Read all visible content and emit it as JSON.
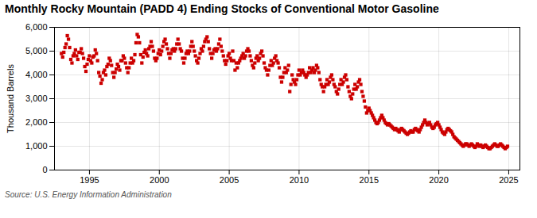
{
  "chart_data": {
    "type": "scatter",
    "title": "Monthly Rocky Mountain (PADD 4) Ending Stocks of Conventional Motor Gasoline",
    "ylabel": "Thousand Barrels",
    "source": "Source: U.S. Energy Information Administration",
    "color": "#cc0000",
    "marker": "square",
    "grid": true,
    "xlim": [
      1992.5,
      2025.8
    ],
    "xticks": [
      1995,
      2000,
      2005,
      2010,
      2015,
      2020,
      2025
    ],
    "ylim": [
      0,
      6000
    ],
    "yticks": [
      0,
      {
        "value": 1000,
        "label": "1,000"
      },
      {
        "value": 2000,
        "label": "2,000"
      },
      {
        "value": 3000,
        "label": "3,000"
      },
      {
        "value": 4000,
        "label": "4,000"
      },
      {
        "value": 5000,
        "label": "5,000"
      },
      {
        "value": 6000,
        "label": "6,000"
      }
    ],
    "x": [
      1993.0,
      1993.083,
      1993.167,
      1993.25,
      1993.333,
      1993.417,
      1993.5,
      1993.583,
      1993.667,
      1993.75,
      1993.833,
      1993.917,
      1994.0,
      1994.083,
      1994.167,
      1994.25,
      1994.333,
      1994.417,
      1994.5,
      1994.583,
      1994.667,
      1994.75,
      1994.833,
      1994.917,
      1995.0,
      1995.083,
      1995.167,
      1995.25,
      1995.333,
      1995.417,
      1995.5,
      1995.583,
      1995.667,
      1995.75,
      1995.833,
      1995.917,
      1996.0,
      1996.083,
      1996.167,
      1996.25,
      1996.333,
      1996.417,
      1996.5,
      1996.583,
      1996.667,
      1996.75,
      1996.833,
      1996.917,
      1997.0,
      1997.083,
      1997.167,
      1997.25,
      1997.333,
      1997.417,
      1997.5,
      1997.583,
      1997.667,
      1997.75,
      1997.833,
      1997.917,
      1998.0,
      1998.083,
      1998.167,
      1998.25,
      1998.333,
      1998.417,
      1998.5,
      1998.583,
      1998.667,
      1998.75,
      1998.833,
      1998.917,
      1999.0,
      1999.083,
      1999.167,
      1999.25,
      1999.333,
      1999.417,
      1999.5,
      1999.583,
      1999.667,
      1999.75,
      1999.833,
      1999.917,
      2000.0,
      2000.083,
      2000.167,
      2000.25,
      2000.333,
      2000.417,
      2000.5,
      2000.583,
      2000.667,
      2000.75,
      2000.833,
      2000.917,
      2001.0,
      2001.083,
      2001.167,
      2001.25,
      2001.333,
      2001.417,
      2001.5,
      2001.583,
      2001.667,
      2001.75,
      2001.833,
      2001.917,
      2002.0,
      2002.083,
      2002.167,
      2002.25,
      2002.333,
      2002.417,
      2002.5,
      2002.583,
      2002.667,
      2002.75,
      2002.833,
      2002.917,
      2003.0,
      2003.083,
      2003.167,
      2003.25,
      2003.333,
      2003.417,
      2003.5,
      2003.583,
      2003.667,
      2003.75,
      2003.833,
      2003.917,
      2004.0,
      2004.083,
      2004.167,
      2004.25,
      2004.333,
      2004.417,
      2004.5,
      2004.583,
      2004.667,
      2004.75,
      2004.833,
      2004.917,
      2005.0,
      2005.083,
      2005.167,
      2005.25,
      2005.333,
      2005.417,
      2005.5,
      2005.583,
      2005.667,
      2005.75,
      2005.833,
      2005.917,
      2006.0,
      2006.083,
      2006.167,
      2006.25,
      2006.333,
      2006.417,
      2006.5,
      2006.583,
      2006.667,
      2006.75,
      2006.833,
      2006.917,
      2007.0,
      2007.083,
      2007.167,
      2007.25,
      2007.333,
      2007.417,
      2007.5,
      2007.583,
      2007.667,
      2007.75,
      2007.833,
      2007.917,
      2008.0,
      2008.083,
      2008.167,
      2008.25,
      2008.333,
      2008.417,
      2008.5,
      2008.583,
      2008.667,
      2008.75,
      2008.833,
      2008.917,
      2009.0,
      2009.083,
      2009.167,
      2009.25,
      2009.333,
      2009.417,
      2009.5,
      2009.583,
      2009.667,
      2009.75,
      2009.833,
      2009.917,
      2010.0,
      2010.083,
      2010.167,
      2010.25,
      2010.333,
      2010.417,
      2010.5,
      2010.583,
      2010.667,
      2010.75,
      2010.833,
      2010.917,
      2011.0,
      2011.083,
      2011.167,
      2011.25,
      2011.333,
      2011.417,
      2011.5,
      2011.583,
      2011.667,
      2011.75,
      2011.833,
      2011.917,
      2012.0,
      2012.083,
      2012.167,
      2012.25,
      2012.333,
      2012.417,
      2012.5,
      2012.583,
      2012.667,
      2012.75,
      2012.833,
      2012.917,
      2013.0,
      2013.083,
      2013.167,
      2013.25,
      2013.333,
      2013.417,
      2013.5,
      2013.583,
      2013.667,
      2013.75,
      2013.833,
      2013.917,
      2014.0,
      2014.083,
      2014.167,
      2014.25,
      2014.333,
      2014.417,
      2014.5,
      2014.583,
      2014.667,
      2014.75,
      2014.833,
      2014.917,
      2015.0,
      2015.083,
      2015.167,
      2015.25,
      2015.333,
      2015.417,
      2015.5,
      2015.583,
      2015.667,
      2015.75,
      2015.833,
      2015.917,
      2016.0,
      2016.083,
      2016.167,
      2016.25,
      2016.333,
      2016.417,
      2016.5,
      2016.583,
      2016.667,
      2016.75,
      2016.833,
      2016.917,
      2017.0,
      2017.083,
      2017.167,
      2017.25,
      2017.333,
      2017.417,
      2017.5,
      2017.583,
      2017.667,
      2017.75,
      2017.833,
      2017.917,
      2018.0,
      2018.083,
      2018.167,
      2018.25,
      2018.333,
      2018.417,
      2018.5,
      2018.583,
      2018.667,
      2018.75,
      2018.833,
      2018.917,
      2019.0,
      2019.083,
      2019.167,
      2019.25,
      2019.333,
      2019.417,
      2019.5,
      2019.583,
      2019.667,
      2019.75,
      2019.833,
      2019.917,
      2020.0,
      2020.083,
      2020.167,
      2020.25,
      2020.333,
      2020.417,
      2020.5,
      2020.583,
      2020.667,
      2020.75,
      2020.833,
      2020.917,
      2021.0,
      2021.083,
      2021.167,
      2021.25,
      2021.333,
      2021.417,
      2021.5,
      2021.583,
      2021.667,
      2021.75,
      2021.833,
      2021.917,
      2022.0,
      2022.083,
      2022.167,
      2022.25,
      2022.333,
      2022.417,
      2022.5,
      2022.583,
      2022.667,
      2022.75,
      2022.833,
      2022.917,
      2023.0,
      2023.083,
      2023.167,
      2023.25,
      2023.333,
      2023.417,
      2023.5,
      2023.583,
      2023.667,
      2023.75,
      2023.833,
      2023.917,
      2024.0,
      2024.083,
      2024.167,
      2024.25,
      2024.333,
      2024.417,
      2024.5,
      2024.583,
      2024.667,
      2024.75,
      2024.833,
      2024.917
    ],
    "values": [
      4900,
      4750,
      4950,
      5150,
      5300,
      5650,
      5500,
      5150,
      4650,
      4500,
      4800,
      4900,
      5050,
      4800,
      4650,
      4950,
      4950,
      5100,
      4900,
      4700,
      4350,
      4150,
      4450,
      4650,
      4800,
      4600,
      4500,
      4750,
      4800,
      5050,
      4900,
      4600,
      4100,
      3950,
      3650,
      3800,
      4100,
      4200,
      4000,
      4350,
      4450,
      4700,
      4600,
      4400,
      4100,
      3900,
      4100,
      4250,
      4450,
      4350,
      4200,
      4600,
      4600,
      4800,
      4700,
      4500,
      4300,
      4100,
      4300,
      4500,
      4700,
      4500,
      4600,
      4850,
      5350,
      5700,
      5600,
      5350,
      4850,
      4500,
      4750,
      4950,
      5050,
      4900,
      4800,
      5100,
      5200,
      5400,
      5200,
      5000,
      4700,
      4600,
      4700,
      4900,
      5050,
      4850,
      5000,
      5200,
      5400,
      5500,
      5300,
      5100,
      4900,
      4700,
      4900,
      5050,
      5100,
      5000,
      5100,
      5300,
      5500,
      5300,
      5100,
      5000,
      4700,
      4500,
      4700,
      4900,
      5000,
      4900,
      5000,
      5200,
      5400,
      5200,
      5000,
      4800,
      4600,
      4500,
      4700,
      4900,
      5100,
      5000,
      5200,
      5400,
      5500,
      5600,
      5400,
      5100,
      4900,
      4700,
      4900,
      5050,
      5100,
      5000,
      5100,
      5300,
      5500,
      5200,
      5000,
      4800,
      4600,
      4450,
      4600,
      4800,
      4900,
      4700,
      4600,
      5000,
      4600,
      4200,
      4500,
      4300,
      4500,
      4600,
      4700,
      4800,
      4900,
      4700,
      4800,
      5000,
      5100,
      5000,
      4800,
      4600,
      4400,
      4300,
      4500,
      4700,
      4800,
      4600,
      4700,
      4900,
      5000,
      4800,
      4500,
      4300,
      4200,
      4000,
      4200,
      4400,
      4600,
      4400,
      4500,
      4700,
      4800,
      4600,
      4500,
      4300,
      3900,
      3700,
      3900,
      4100,
      4300,
      4100,
      4200,
      4400,
      3300,
      3600,
      4000,
      3800,
      3700,
      3600,
      3800,
      4000,
      4200,
      4000,
      4100,
      4200,
      4100,
      4000,
      3900,
      4000,
      4100,
      4300,
      4100,
      4200,
      4300,
      4100,
      4200,
      4400,
      4300,
      4100,
      3800,
      3600,
      3500,
      3300,
      3500,
      3600,
      3800,
      3600,
      3700,
      3900,
      4000,
      3800,
      3600,
      3500,
      3300,
      3200,
      3400,
      3600,
      3800,
      3600,
      3700,
      3900,
      4000,
      3800,
      3500,
      3300,
      3100,
      3000,
      3200,
      3400,
      3600,
      3400,
      3500,
      3700,
      3800,
      3600,
      3300,
      3100,
      2900,
      2650,
      2400,
      2500,
      2600,
      2500,
      2400,
      2300,
      2200,
      2100,
      2000,
      1950,
      2000,
      2100,
      2200,
      2300,
      2200,
      2100,
      2000,
      1950,
      1900,
      1950,
      1900,
      1850,
      1800,
      1750,
      1700,
      1750,
      1700,
      1650,
      1600,
      1700,
      1750,
      1700,
      1650,
      1600,
      1550,
      1500,
      1550,
      1600,
      1650,
      1600,
      1600,
      1700,
      1750,
      1700,
      1650,
      1600,
      1700,
      1800,
      1900,
      2000,
      2100,
      2000,
      1900,
      1950,
      2000,
      1900,
      1800,
      1750,
      1800,
      1900,
      1950,
      2000,
      1900,
      1800,
      1700,
      1600,
      1550,
      1500,
      1600,
      1700,
      1750,
      1700,
      1650,
      1600,
      1500,
      1400,
      1350,
      1300,
      1250,
      1200,
      1150,
      1100,
      1050,
      1000,
      1050,
      1100,
      1100,
      1050,
      1000,
      1050,
      1100,
      1050,
      1000,
      950,
      1000,
      1100,
      1050,
      1000,
      1050,
      1000,
      950,
      1000,
      1050,
      1000,
      950,
      900,
      900,
      950,
      1000,
      1050,
      1100,
      1050,
      1000,
      1000,
      1050,
      1100,
      1050,
      1000,
      950,
      900,
      950,
      1000
    ]
  }
}
